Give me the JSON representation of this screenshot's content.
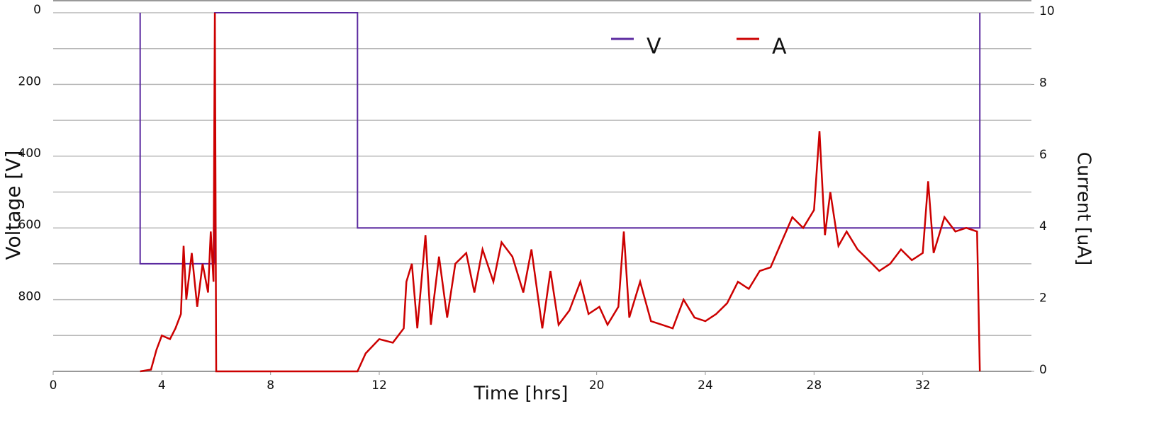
{
  "chart_data": {
    "type": "line",
    "xlabel": "Time [hrs]",
    "ylabel": "Voltage [V]",
    "y2label": "Current [uA]",
    "xlim": [
      0,
      36
    ],
    "xticks": [
      0,
      4,
      8,
      12,
      20,
      24,
      28,
      32
    ],
    "ylim": [
      1000,
      0
    ],
    "yticks": [
      0,
      200,
      400,
      600,
      800
    ],
    "minor_yticks": [
      100,
      300,
      500,
      700,
      900
    ],
    "y2lim": [
      0,
      10
    ],
    "y2ticks": [
      0,
      2,
      4,
      6,
      8,
      10
    ],
    "grid": true,
    "legend": "top",
    "series": [
      {
        "name": "V",
        "color": "#5b2aa0",
        "x": [
          3.2,
          3.2,
          5.95,
          5.95,
          11.2,
          11.2,
          34.1,
          34.1
        ],
        "values": [
          0,
          700,
          700,
          0,
          0,
          600,
          600,
          0
        ]
      },
      {
        "name": "A",
        "color": "#cc0000",
        "axis": "y2",
        "x": [
          3.2,
          3.6,
          3.8,
          4.0,
          4.3,
          4.5,
          4.7,
          4.8,
          4.9,
          5.1,
          5.3,
          5.5,
          5.7,
          5.8,
          5.9,
          5.95,
          6.0,
          11.2,
          11.5,
          12.0,
          12.5,
          12.9,
          13.0,
          13.2,
          13.4,
          13.7,
          13.9,
          14.2,
          14.5,
          14.8,
          15.2,
          15.5,
          15.8,
          16.2,
          16.5,
          16.9,
          17.3,
          17.6,
          18.0,
          18.3,
          18.6,
          19.0,
          19.4,
          19.7,
          20.1,
          20.4,
          20.8,
          21.0,
          21.2,
          21.6,
          22.0,
          22.4,
          22.8,
          23.2,
          23.6,
          24.0,
          24.4,
          24.8,
          25.2,
          25.6,
          26.0,
          26.4,
          26.8,
          27.2,
          27.6,
          28.0,
          28.2,
          28.4,
          28.6,
          28.9,
          29.2,
          29.6,
          30.0,
          30.4,
          30.8,
          31.2,
          31.6,
          32.0,
          32.2,
          32.4,
          32.8,
          33.2,
          33.6,
          34.0,
          34.1
        ],
        "values": [
          0,
          0.05,
          0.6,
          1.0,
          0.9,
          1.2,
          1.6,
          3.5,
          2.0,
          3.3,
          1.8,
          3.0,
          2.2,
          3.9,
          2.5,
          10,
          0,
          0,
          0.5,
          0.9,
          0.8,
          1.2,
          2.5,
          3.0,
          1.2,
          3.8,
          1.3,
          3.2,
          1.5,
          3.0,
          3.3,
          2.2,
          3.4,
          2.5,
          3.6,
          3.2,
          2.2,
          3.4,
          1.2,
          2.8,
          1.3,
          1.7,
          2.5,
          1.6,
          1.8,
          1.3,
          1.8,
          3.9,
          1.5,
          2.5,
          1.4,
          1.3,
          1.2,
          2.0,
          1.5,
          1.4,
          1.6,
          1.9,
          2.5,
          2.3,
          2.8,
          2.9,
          3.6,
          4.3,
          4.0,
          4.5,
          6.7,
          3.8,
          5.0,
          3.5,
          3.9,
          3.4,
          3.1,
          2.8,
          3.0,
          3.4,
          3.1,
          3.3,
          5.3,
          3.3,
          4.3,
          3.9,
          4.0,
          3.9,
          0
        ]
      }
    ]
  }
}
